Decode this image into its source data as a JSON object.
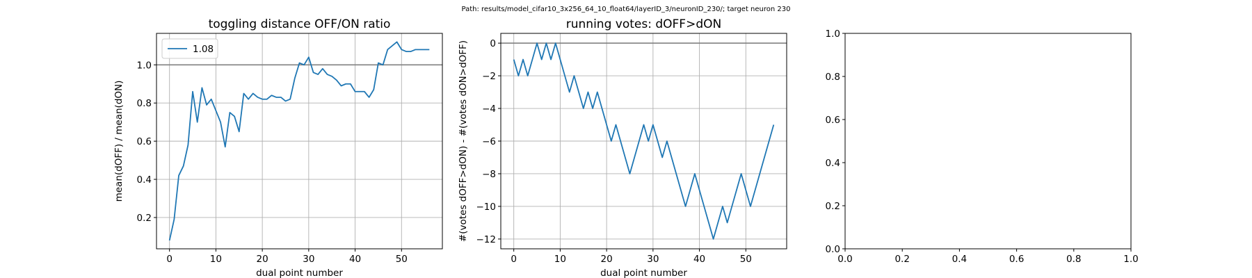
{
  "suptitle": "Path: results/model_cifar10_3x256_64_10_float64/layerID_3/neuronID_230/; target neuron 230",
  "colors": {
    "line": "#1f77b4",
    "grid": "#b0b0b0",
    "ref": "#808080",
    "axes": "#000000"
  },
  "chart_data": [
    {
      "type": "line",
      "title": "toggling distance OFF/ON ratio",
      "xlabel": "dual point number",
      "ylabel": "mean(dOFF) / mean(dON)",
      "xlim": [
        -2.8,
        58.8
      ],
      "ylim": [
        0.036,
        1.165
      ],
      "xticks": [
        0,
        10,
        20,
        30,
        40,
        50
      ],
      "yticks": [
        0.2,
        0.4,
        0.6,
        0.8,
        1.0
      ],
      "ytick_labels": [
        "0.2",
        "0.4",
        "0.6",
        "0.8",
        "1.0"
      ],
      "grid": true,
      "hline": 1.0,
      "legend": {
        "position": "upper-left",
        "label": "1.08"
      },
      "series": [
        {
          "name": "1.08",
          "x": [
            0,
            1,
            2,
            3,
            4,
            5,
            6,
            7,
            8,
            9,
            10,
            11,
            12,
            13,
            14,
            15,
            16,
            17,
            18,
            19,
            20,
            21,
            22,
            23,
            24,
            25,
            26,
            27,
            28,
            29,
            30,
            31,
            32,
            33,
            34,
            35,
            36,
            37,
            38,
            39,
            40,
            41,
            42,
            43,
            44,
            45,
            46,
            47,
            48,
            49,
            50,
            51,
            52,
            53,
            54,
            55,
            56
          ],
          "y": [
            0.08,
            0.19,
            0.42,
            0.47,
            0.58,
            0.86,
            0.7,
            0.88,
            0.79,
            0.82,
            0.76,
            0.7,
            0.57,
            0.75,
            0.73,
            0.65,
            0.85,
            0.82,
            0.85,
            0.83,
            0.82,
            0.82,
            0.84,
            0.83,
            0.83,
            0.81,
            0.82,
            0.93,
            1.01,
            1.0,
            1.04,
            0.96,
            0.95,
            0.98,
            0.95,
            0.94,
            0.92,
            0.89,
            0.9,
            0.9,
            0.86,
            0.86,
            0.86,
            0.83,
            0.87,
            1.01,
            1.0,
            1.08,
            1.1,
            1.12,
            1.08,
            1.07,
            1.07,
            1.08,
            1.08,
            1.08,
            1.08
          ]
        }
      ]
    },
    {
      "type": "line",
      "title": "running votes: dOFF>dON",
      "xlabel": "dual point number",
      "ylabel": "#(votes dOFF>dON) - #(votes dON>dOFF)",
      "xlim": [
        -2.8,
        58.8
      ],
      "ylim": [
        -12.6,
        0.6
      ],
      "xticks": [
        0,
        10,
        20,
        30,
        40,
        50
      ],
      "yticks": [
        0,
        -2,
        -4,
        -6,
        -8,
        -10,
        -12
      ],
      "ytick_labels": [
        "0",
        "−2",
        "−4",
        "−6",
        "−8",
        "−10",
        "−12"
      ],
      "grid": true,
      "hline": 0,
      "series": [
        {
          "x": [
            0,
            1,
            2,
            3,
            4,
            5,
            6,
            7,
            8,
            9,
            10,
            11,
            12,
            13,
            14,
            15,
            16,
            17,
            18,
            19,
            20,
            21,
            22,
            23,
            24,
            25,
            26,
            27,
            28,
            29,
            30,
            31,
            32,
            33,
            34,
            35,
            36,
            37,
            38,
            39,
            40,
            41,
            42,
            43,
            44,
            45,
            46,
            47,
            48,
            49,
            50,
            51,
            52,
            53,
            54,
            55,
            56
          ],
          "y": [
            -1,
            -2,
            -1,
            -2,
            -1,
            0,
            -1,
            0,
            -1,
            0,
            -1,
            -2,
            -3,
            -2,
            -3,
            -4,
            -3,
            -4,
            -3,
            -4,
            -5,
            -6,
            -5,
            -6,
            -7,
            -8,
            -7,
            -6,
            -5,
            -6,
            -5,
            -6,
            -7,
            -6,
            -7,
            -8,
            -9,
            -10,
            -9,
            -8,
            -9,
            -10,
            -11,
            -12,
            -11,
            -10,
            -11,
            -10,
            -9,
            -8,
            -9,
            -10,
            -9,
            -8,
            -7,
            -6,
            -5
          ]
        }
      ]
    },
    {
      "type": "line",
      "title": "",
      "xlabel": "",
      "ylabel": "",
      "xlim": [
        0,
        1
      ],
      "ylim": [
        0,
        1
      ],
      "xticks": [
        0,
        0.2,
        0.4,
        0.6,
        0.8,
        1.0
      ],
      "yticks": [
        0,
        0.2,
        0.4,
        0.6,
        0.8,
        1.0
      ],
      "xtick_labels": [
        "0.0",
        "0.2",
        "0.4",
        "0.6",
        "0.8",
        "1.0"
      ],
      "ytick_labels": [
        "0.0",
        "0.2",
        "0.4",
        "0.6",
        "0.8",
        "1.0"
      ],
      "grid": false,
      "series": []
    }
  ]
}
